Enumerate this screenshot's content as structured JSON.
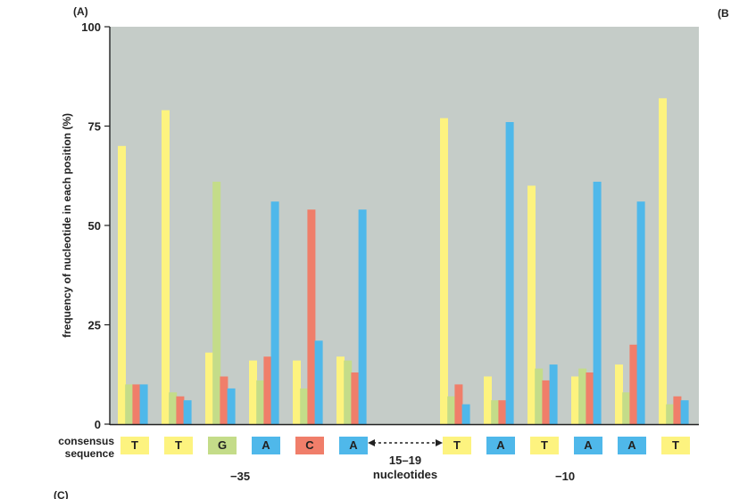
{
  "panel_labels": {
    "a": "(A)",
    "b": "(B",
    "c": "(C)"
  },
  "colors": {
    "background": "#c5ccc8",
    "T": "#fdf37f",
    "G": "#c4dc89",
    "A": "#4fb8ea",
    "C": "#f07e6a",
    "axis": "#222222"
  },
  "axis": {
    "ylabel": "frequency of nucleotide in each position (%)",
    "yticks": [
      "0",
      "25",
      "50",
      "75",
      "100"
    ]
  },
  "legend_row": {
    "label_line1": "consensus",
    "label_line2": "sequence",
    "minus35": "−35",
    "minus10": "−10",
    "spacer_line1": "15–19",
    "spacer_line2": "nucleotides"
  },
  "consensus": [
    {
      "base": "T",
      "color": "#fdf37f"
    },
    {
      "base": "T",
      "color": "#fdf37f"
    },
    {
      "base": "G",
      "color": "#c4dc89"
    },
    {
      "base": "A",
      "color": "#4fb8ea"
    },
    {
      "base": "C",
      "color": "#f07e6a"
    },
    {
      "base": "A",
      "color": "#4fb8ea"
    },
    {
      "base": "T",
      "color": "#fdf37f"
    },
    {
      "base": "A",
      "color": "#4fb8ea"
    },
    {
      "base": "T",
      "color": "#fdf37f"
    },
    {
      "base": "A",
      "color": "#4fb8ea"
    },
    {
      "base": "A",
      "color": "#4fb8ea"
    },
    {
      "base": "T",
      "color": "#fdf37f"
    }
  ],
  "chart_data": {
    "type": "bar",
    "title": "",
    "xlabel": "",
    "ylabel": "frequency of nucleotide in each position (%)",
    "ylim": [
      0,
      100
    ],
    "yticks": [
      0,
      25,
      50,
      75,
      100
    ],
    "grid": false,
    "categories": [
      "T",
      "T",
      "G",
      "A",
      "C",
      "A",
      "T",
      "A",
      "T",
      "A",
      "A",
      "T"
    ],
    "series": [
      {
        "color": "#fdf37f",
        "values": [
          70,
          79,
          18,
          16,
          16,
          17,
          77,
          12,
          60,
          12,
          15,
          82
        ]
      },
      {
        "color": "#c4dc89",
        "values": [
          10,
          8,
          61,
          11,
          9,
          16,
          7,
          6,
          14,
          14,
          8,
          5
        ]
      },
      {
        "color": "#f07e6a",
        "values": [
          10,
          7,
          12,
          17,
          54,
          13,
          10,
          6,
          11,
          13,
          20,
          7
        ]
      },
      {
        "color": "#4fb8ea",
        "values": [
          10,
          6,
          9,
          56,
          21,
          54,
          5,
          76,
          15,
          61,
          56,
          6
        ]
      }
    ]
  }
}
